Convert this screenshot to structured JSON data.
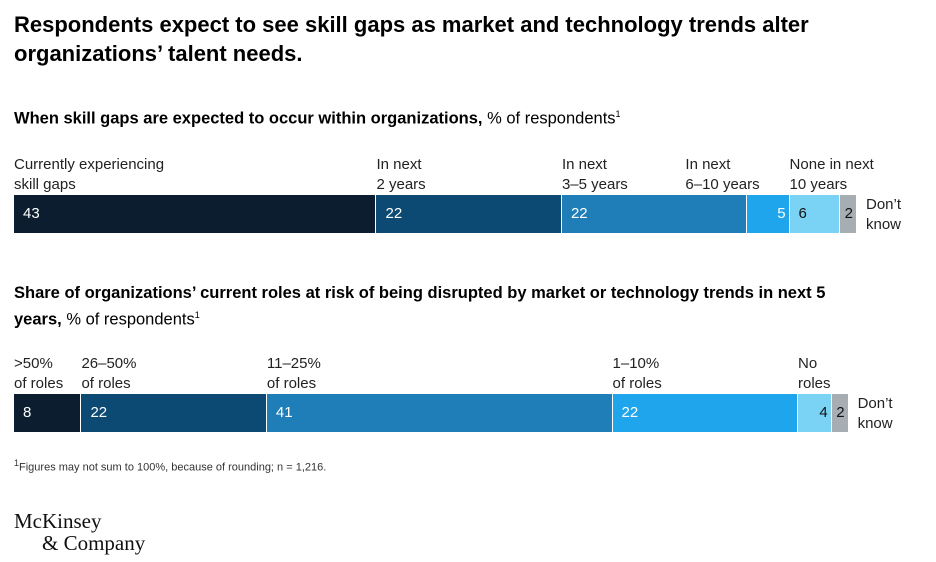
{
  "title": "Respondents expect to see skill gaps as market and technology trends alter organizations’ talent needs.",
  "chart_data": [
    {
      "type": "stacked_bar",
      "title": "When skill gaps are expected to occur within organizations,",
      "unit": "% of respondents",
      "title_note": "1",
      "categories": [
        "Currently experiencing\nskill gaps",
        "In next\n2 years",
        "In next\n3–5 years",
        "In next\n6–10 years",
        "None in next\n10 years",
        "Don’t\nknow"
      ],
      "values": [
        43,
        22,
        22,
        5,
        6,
        2
      ],
      "colors": [
        "#0b1d2e",
        "#0d4a73",
        "#1f7eb8",
        "#1ea5ec",
        "#7ad3f4",
        "#a6aeb4"
      ]
    },
    {
      "type": "stacked_bar",
      "title": "Share of organizations’ current roles at risk of being disrupted by market or technology trends in next 5 years,",
      "unit": "% of respondents",
      "title_note": "1",
      "categories": [
        ">50%\nof roles",
        "26–50%\nof roles",
        "11–25%\nof roles",
        "1–10%\nof roles",
        "No\nroles",
        "Don’t\nknow"
      ],
      "values": [
        8,
        22,
        41,
        22,
        4,
        2
      ],
      "colors": [
        "#0b1d2e",
        "#0d4a73",
        "#1f7eb8",
        "#1ea5ec",
        "#7ad3f4",
        "#a6aeb4"
      ]
    }
  ],
  "footnote": {
    "mark": "1",
    "text": "Figures may not sum to 100%, because of rounding; n = 1,216."
  },
  "brand": [
    "McKinsey",
    "& Company"
  ]
}
